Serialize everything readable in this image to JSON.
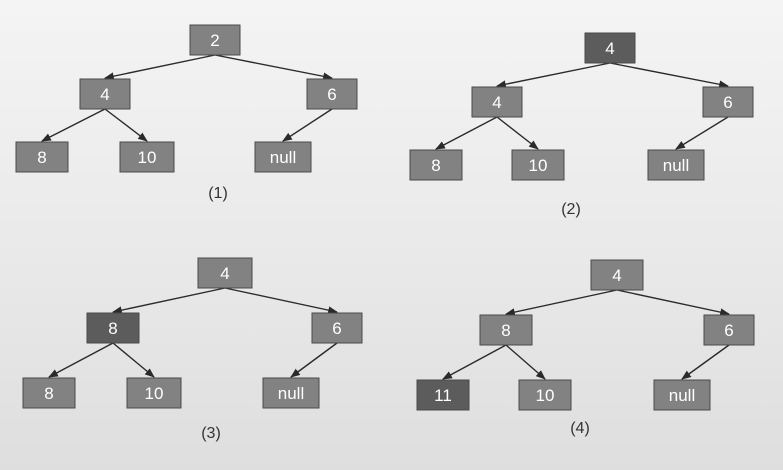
{
  "diagrams": [
    {
      "caption": "(1)",
      "nodes": [
        {
          "id": "root",
          "label": "2",
          "shade": "normal"
        },
        {
          "id": "left",
          "label": "4",
          "shade": "normal"
        },
        {
          "id": "right",
          "label": "6",
          "shade": "normal"
        },
        {
          "id": "left-left",
          "label": "8",
          "shade": "normal"
        },
        {
          "id": "left-right",
          "label": "10",
          "shade": "normal"
        },
        {
          "id": "right-left",
          "label": "null",
          "shade": "normal"
        }
      ]
    },
    {
      "caption": "(2)",
      "nodes": [
        {
          "id": "root",
          "label": "4",
          "shade": "dark"
        },
        {
          "id": "left",
          "label": "4",
          "shade": "normal"
        },
        {
          "id": "right",
          "label": "6",
          "shade": "normal"
        },
        {
          "id": "left-left",
          "label": "8",
          "shade": "normal"
        },
        {
          "id": "left-right",
          "label": "10",
          "shade": "normal"
        },
        {
          "id": "right-left",
          "label": "null",
          "shade": "normal"
        }
      ]
    },
    {
      "caption": "(3)",
      "nodes": [
        {
          "id": "root",
          "label": "4",
          "shade": "normal"
        },
        {
          "id": "left",
          "label": "8",
          "shade": "dark"
        },
        {
          "id": "right",
          "label": "6",
          "shade": "normal"
        },
        {
          "id": "left-left",
          "label": "8",
          "shade": "normal"
        },
        {
          "id": "left-right",
          "label": "10",
          "shade": "normal"
        },
        {
          "id": "right-left",
          "label": "null",
          "shade": "normal"
        }
      ]
    },
    {
      "caption": "(4)",
      "nodes": [
        {
          "id": "root",
          "label": "4",
          "shade": "normal"
        },
        {
          "id": "left",
          "label": "8",
          "shade": "normal"
        },
        {
          "id": "right",
          "label": "6",
          "shade": "normal"
        },
        {
          "id": "left-left",
          "label": "11",
          "shade": "dark"
        },
        {
          "id": "left-right",
          "label": "10",
          "shade": "normal"
        },
        {
          "id": "right-left",
          "label": "null",
          "shade": "normal"
        }
      ]
    }
  ],
  "edges": [
    {
      "from": "root",
      "to": "left"
    },
    {
      "from": "root",
      "to": "right"
    },
    {
      "from": "left",
      "to": "left-left"
    },
    {
      "from": "left",
      "to": "left-right"
    },
    {
      "from": "right",
      "to": "right-left"
    }
  ],
  "colors": {
    "node_normal": "#828282",
    "node_dark": "#5c5c5c",
    "edge": "#2a2a2a",
    "text": "#ffffff"
  }
}
